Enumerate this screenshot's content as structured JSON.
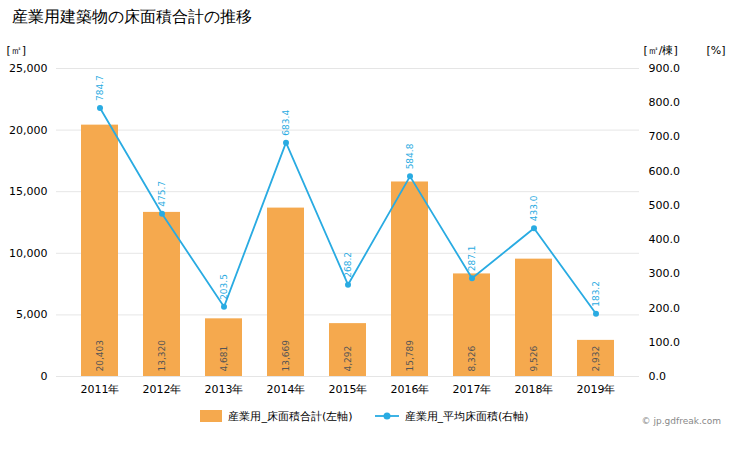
{
  "chart_data": {
    "type": "bar",
    "title": "産業用建築物の床面積合計の推移",
    "categories": [
      "2011年",
      "2012年",
      "2013年",
      "2014年",
      "2015年",
      "2016年",
      "2017年",
      "2018年",
      "2019年"
    ],
    "series": [
      {
        "name": "産業用_床面積合計(左軸)",
        "type": "bar",
        "color": "#F5A94E",
        "values": [
          20403,
          13320,
          4681,
          13669,
          4292,
          15789,
          8326,
          9526,
          2932
        ],
        "value_labels": [
          "20,403",
          "13,320",
          "4,681",
          "13,669",
          "4,292",
          "15,789",
          "8,326",
          "9,526",
          "2,932"
        ]
      },
      {
        "name": "産業用_平均床面積(右軸)",
        "type": "line",
        "axis": "y2",
        "color": "#29ABE2",
        "marker": "circle",
        "values": [
          784.7,
          475.7,
          203.5,
          683.4,
          268.2,
          584.8,
          287.1,
          433.0,
          183.2
        ],
        "value_labels": [
          "784.7",
          "475.7",
          "203.5",
          "683.4",
          "268.2",
          "584.8",
          "287.1",
          "433.0",
          "183.2"
        ]
      }
    ],
    "ylabel": "[㎡]",
    "y2label": "[㎡/棟]",
    "ylim": [
      0,
      25000
    ],
    "yticks": [
      0,
      {
        "value": 5000,
        "label": "5,000"
      },
      {
        "value": 10000,
        "label": "10,000"
      },
      {
        "value": 15000,
        "label": "15,000"
      },
      {
        "value": 20000,
        "label": "20,000"
      },
      {
        "value": 25000,
        "label": "25,000"
      }
    ],
    "y2lim": [
      0,
      900
    ],
    "y2ticks": [
      {
        "value": 0,
        "label": "0.0"
      },
      {
        "value": 100,
        "label": "100.0"
      },
      {
        "value": 200,
        "label": "200.0"
      },
      {
        "value": 300,
        "label": "300.0"
      },
      {
        "value": 400,
        "label": "400.0"
      },
      {
        "value": 500,
        "label": "500.0"
      },
      {
        "value": 600,
        "label": "600.0"
      },
      {
        "value": 700,
        "label": "700.0"
      },
      {
        "value": 800,
        "label": "800.0"
      },
      {
        "value": 900,
        "label": "900.0"
      }
    ],
    "grid": true,
    "legend": "bottom",
    "data_labels": true,
    "annotations": [
      "[%]",
      "© jp.gdfreak.com"
    ]
  }
}
